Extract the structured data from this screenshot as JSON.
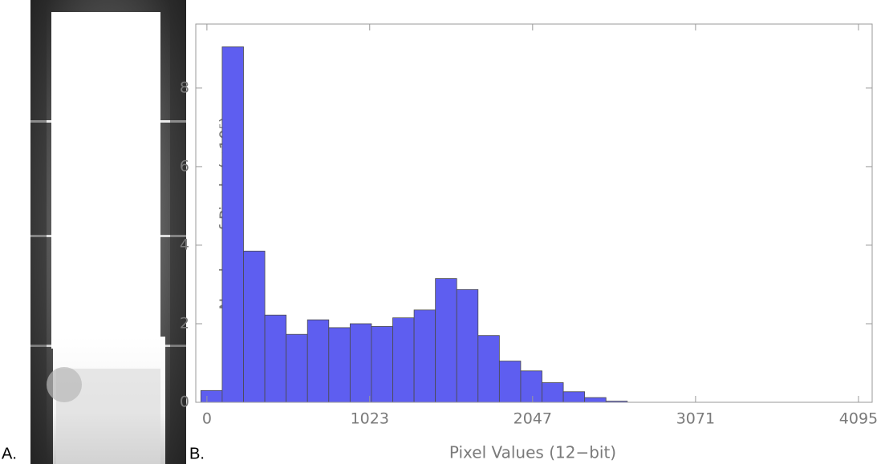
{
  "panel_labels": [
    "A.",
    "B."
  ],
  "chart_data": {
    "type": "histogram",
    "xlabel": "Pixel Values (12−bit)",
    "ylabel": "Number of Pixels (×10⁵)",
    "bins": [
      -38,
      96,
      230,
      364,
      498,
      632,
      766,
      900,
      1034,
      1168,
      1302,
      1436,
      1570,
      1704,
      1838,
      1972,
      2106,
      2240,
      2374,
      2508,
      2642
    ],
    "values": [
      0.3,
      9.05,
      3.85,
      2.22,
      1.73,
      2.1,
      1.9,
      2.0,
      1.93,
      2.15,
      2.35,
      3.15,
      2.87,
      1.7,
      1.05,
      0.8,
      0.5,
      0.27,
      0.12,
      0.03
    ],
    "color": "#5e5ef0",
    "xlim": [
      -70,
      4181
    ],
    "ylim": [
      0,
      9.63
    ],
    "xticks": [
      0,
      1023,
      2047,
      3071,
      4095
    ],
    "yticks": [
      0,
      2,
      4,
      6,
      8
    ]
  }
}
